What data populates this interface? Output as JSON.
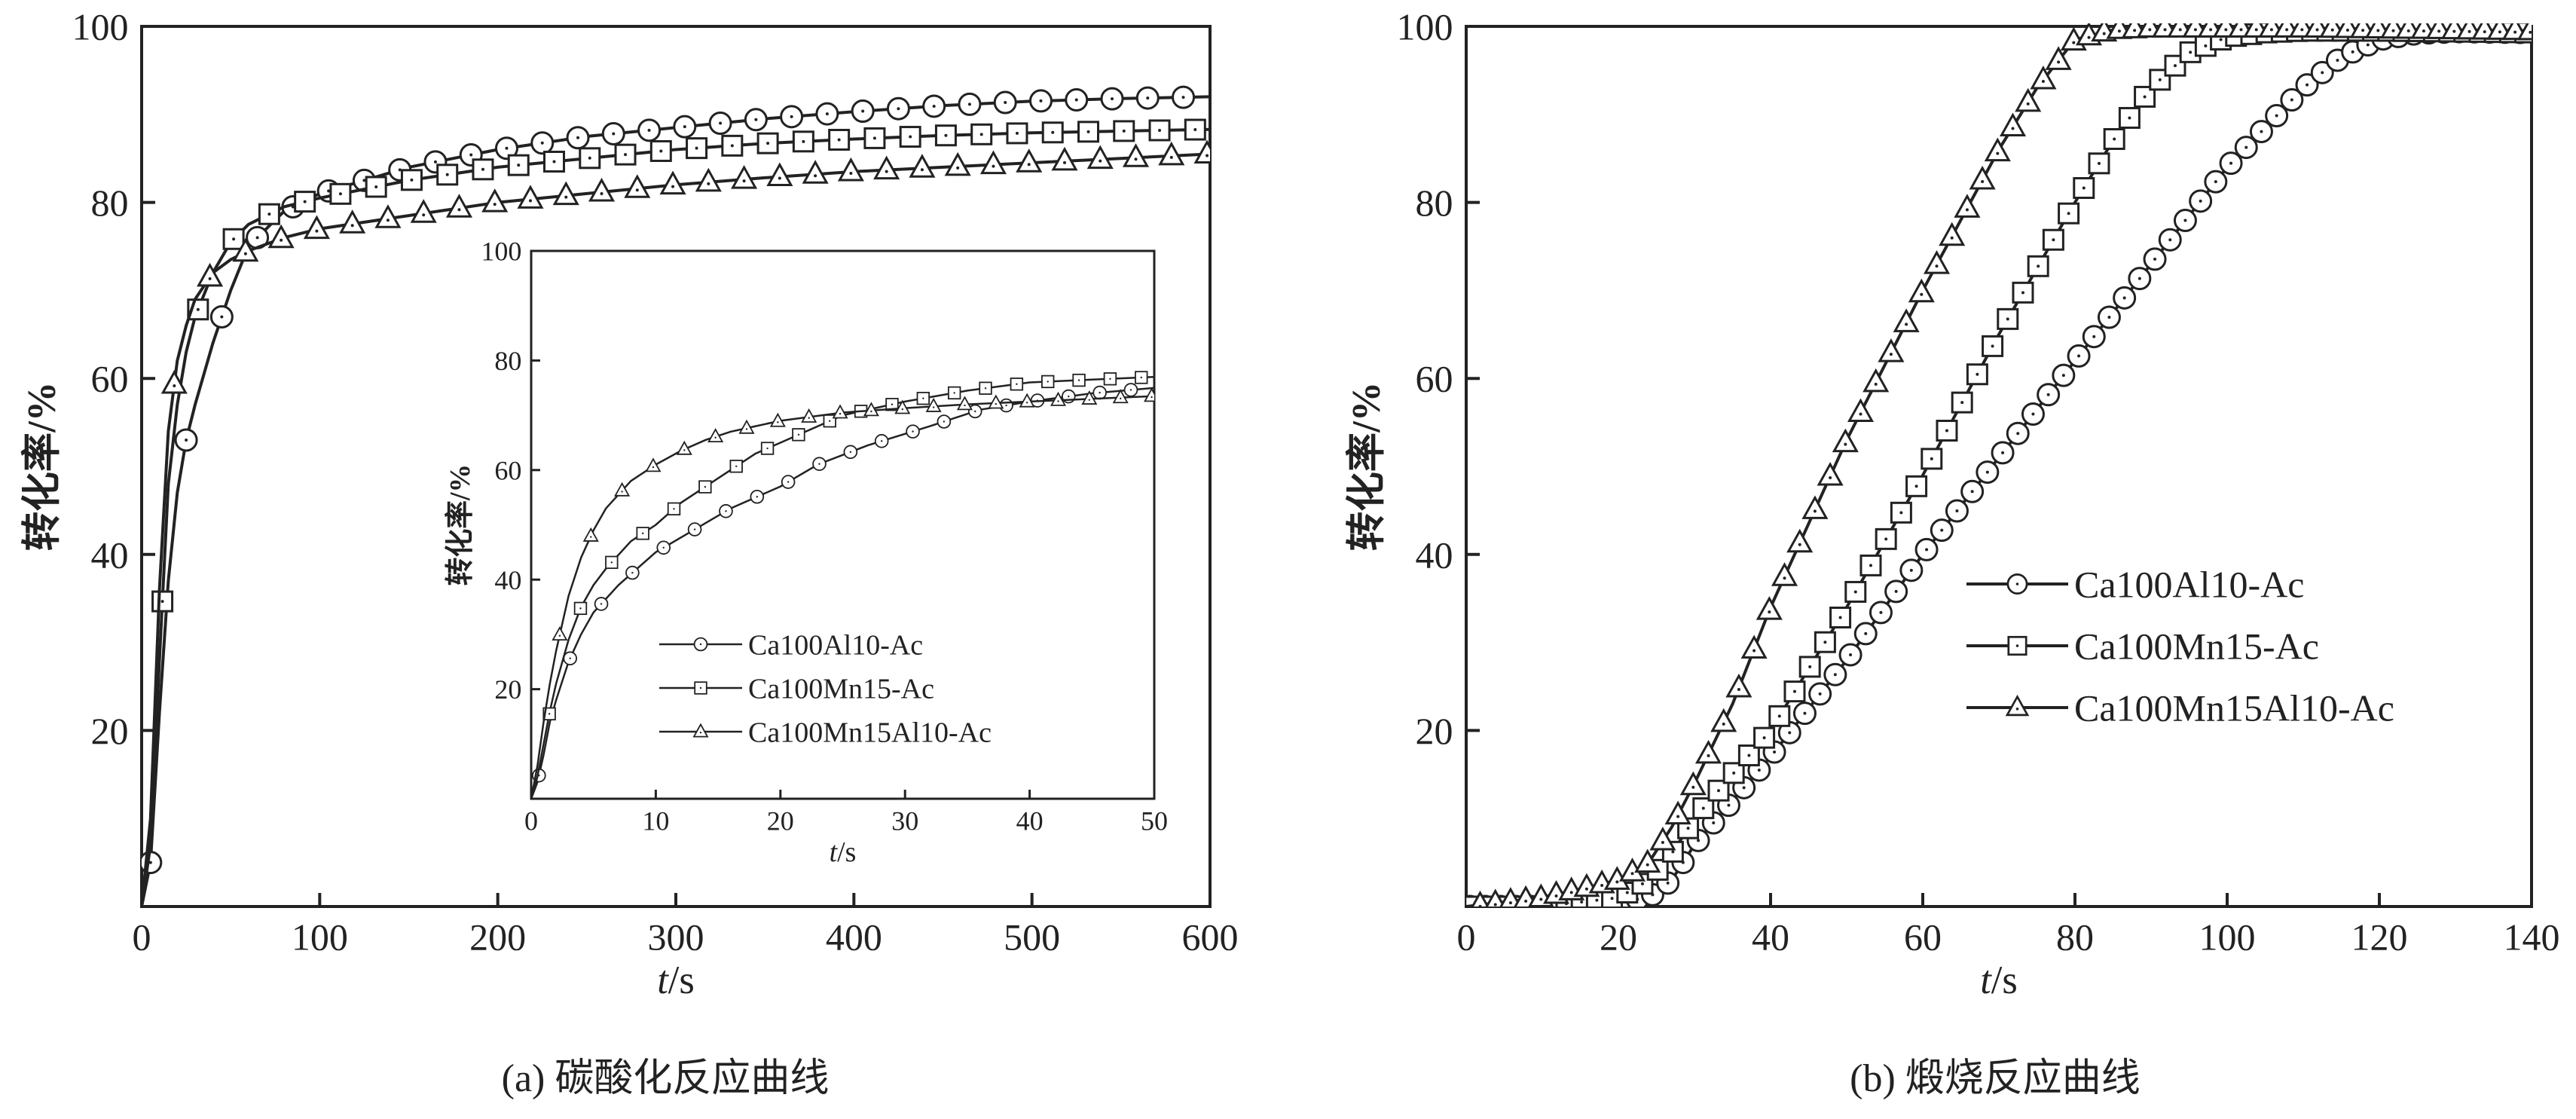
{
  "chart_data": [
    {
      "type": "line",
      "caption": "(a) 碳酸化反应曲线",
      "xlabel_italic": "t",
      "xlabel_unit": "/s",
      "ylabel": "转化率/%",
      "xlim": [
        0,
        600
      ],
      "ylim": [
        0,
        100
      ],
      "x_ticks": [
        "0",
        "100",
        "200",
        "300",
        "400",
        "500",
        "600"
      ],
      "y_ticks": [
        "",
        "20",
        "40",
        "60",
        "80",
        "100"
      ],
      "marker_step": 20,
      "series": [
        {
          "name": "Ca100Al10-Ac",
          "marker": "circle",
          "x": [
            0,
            5,
            10,
            15,
            20,
            25,
            30,
            40,
            50,
            60,
            80,
            100,
            150,
            200,
            250,
            300,
            350,
            400,
            450,
            500,
            550,
            600
          ],
          "y": [
            0,
            5,
            22,
            37,
            47,
            53,
            57,
            64,
            70,
            75,
            79,
            81,
            84,
            86,
            87.5,
            88.5,
            89.5,
            90.3,
            91,
            91.5,
            91.8,
            92
          ]
        },
        {
          "name": "Ca100Mn15-Ac",
          "marker": "square",
          "x": [
            0,
            5,
            10,
            15,
            20,
            25,
            30,
            40,
            50,
            60,
            80,
            100,
            150,
            200,
            250,
            300,
            350,
            400,
            450,
            500,
            550,
            600
          ],
          "y": [
            0,
            7,
            28,
            48,
            57,
            63,
            67,
            72,
            75.5,
            77.5,
            79.5,
            80.5,
            82.5,
            84,
            85,
            86,
            86.7,
            87.2,
            87.6,
            87.9,
            88.1,
            88.3
          ]
        },
        {
          "name": "Ca100Mn15Al10-Ac",
          "marker": "triangle",
          "x": [
            0,
            5,
            10,
            15,
            20,
            25,
            30,
            40,
            50,
            60,
            80,
            100,
            150,
            200,
            250,
            300,
            350,
            400,
            450,
            500,
            550,
            600
          ],
          "y": [
            0,
            10,
            36,
            54,
            62,
            66,
            69,
            72,
            73.5,
            74.5,
            76,
            77,
            78.5,
            80,
            81,
            82,
            82.8,
            83.5,
            84,
            84.5,
            85,
            85.5
          ]
        }
      ],
      "inset": {
        "xlabel_italic": "t",
        "xlabel_unit": "/s",
        "ylabel": "转化率/%",
        "xlim": [
          0,
          50
        ],
        "ylim": [
          0,
          100
        ],
        "x_ticks": [
          "0",
          "10",
          "20",
          "30",
          "40",
          "50"
        ],
        "y_ticks": [
          "",
          "20",
          "40",
          "60",
          "80",
          "100"
        ],
        "legend_position": "lower-right",
        "series": [
          {
            "name": "Ca100Al10-Ac",
            "marker": "circle",
            "x": [
              0,
              0.5,
              1,
              1.5,
              2,
              3,
              4,
              5,
              7,
              10,
              13,
              16,
              20,
              23,
              27,
              32,
              36,
              40,
              45,
              50
            ],
            "y": [
              0,
              3,
              8,
              14,
              18,
              25,
              30,
              34,
              39,
              45,
              49,
              53,
              57,
              61,
              64.5,
              68,
              71,
              72.5,
              74,
              75
            ]
          },
          {
            "name": "Ca100Mn15-Ac",
            "marker": "square",
            "x": [
              0,
              0.5,
              1,
              1.5,
              2,
              3,
              4,
              5,
              6,
              8,
              10,
              12,
              14,
              16,
              18,
              20,
              25,
              30,
              35,
              40,
              45,
              50
            ],
            "y": [
              0,
              4,
              10,
              16,
              21,
              29,
              35,
              39,
              42,
              47,
              50,
              54,
              57,
              60,
              63,
              65,
              70,
              72.5,
              74.5,
              76,
              76.5,
              77
            ]
          },
          {
            "name": "Ca100Mn15Al10-Ac",
            "marker": "triangle",
            "x": [
              0,
              0.5,
              1,
              1.5,
              2,
              3,
              4,
              5,
              6,
              8,
              10,
              12,
              14,
              16,
              18,
              20,
              25,
              30,
              35,
              40,
              45,
              50
            ],
            "y": [
              0,
              6,
              14,
              21,
              27,
              37,
              44,
              49,
              53,
              58,
              61,
              63.5,
              65.5,
              67,
              68,
              69,
              70.5,
              71.3,
              72,
              72.5,
              73,
              73.5
            ]
          }
        ]
      }
    },
    {
      "type": "line",
      "caption": "(b) 煅烧反应曲线",
      "xlabel_italic": "t",
      "xlabel_unit": "/s",
      "ylabel": "转化率/%",
      "xlim": [
        0,
        140
      ],
      "ylim": [
        0,
        100
      ],
      "x_ticks": [
        "0",
        "20",
        "40",
        "60",
        "80",
        "100",
        "120",
        "140"
      ],
      "y_ticks": [
        "",
        "20",
        "40",
        "60",
        "80",
        "100"
      ],
      "legend_position": "center-right",
      "marker_step": 2,
      "series": [
        {
          "name": "Ca100Al10-Ac",
          "marker": "circle",
          "x": [
            0,
            10,
            20,
            24,
            27,
            30,
            35,
            40,
            50,
            60,
            70,
            80,
            90,
            100,
            110,
            115,
            120,
            125,
            130,
            140
          ],
          "y": [
            0,
            0,
            0.5,
            1,
            3,
            7,
            12,
            17,
            28,
            40,
            51,
            62,
            73,
            84,
            93,
            96.5,
            98.5,
            99.2,
            99.4,
            99.3
          ]
        },
        {
          "name": "Ca100Mn15-Ac",
          "marker": "square",
          "x": [
            0,
            10,
            20,
            24,
            27,
            30,
            35,
            40,
            50,
            60,
            70,
            80,
            85,
            90,
            95,
            100,
            105,
            110,
            120,
            130,
            140
          ],
          "y": [
            0,
            0,
            1,
            3,
            6,
            10,
            15,
            20,
            34,
            49,
            65,
            80,
            87,
            93,
            97,
            98.8,
            99.3,
            99.5,
            99.5,
            99.4,
            99.3
          ]
        },
        {
          "name": "Ca100Mn15Al10-Ac",
          "marker": "triangle",
          "x": [
            0,
            10,
            20,
            24,
            27,
            30,
            35,
            40,
            50,
            60,
            70,
            75,
            80,
            85,
            90,
            100,
            110,
            120,
            130,
            140
          ],
          "y": [
            0,
            1,
            3,
            5,
            9,
            14,
            23,
            34,
            53,
            70,
            86,
            93,
            98.5,
            99.6,
            99.8,
            99.8,
            99.8,
            99.7,
            99.6,
            99.5
          ]
        }
      ]
    }
  ]
}
